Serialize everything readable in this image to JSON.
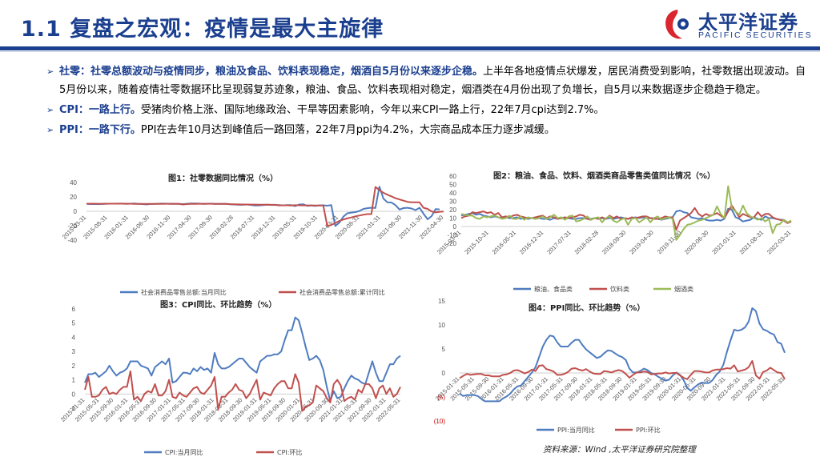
{
  "header": {
    "title": "1.1 复盘之宏观：疫情是最大主旋律",
    "logo_cn": "太平洋证券",
    "logo_en": "PACIFIC SECURITIES"
  },
  "bullets": [
    {
      "lead": "社零：社零总额波动与疫情同步，粮油及食品、饮料表现稳定，烟酒自5月份以来逐步企稳。",
      "body": "上半年各地疫情点状爆发，居民消费受到影响，社零数据出现波动。自5月份以来，随着疫情社零数据环比呈现弱复苏迹象，粮油、食品、饮料表现相对稳定，烟酒类在4月份出现了负增长，自5月以来数据逐步企稳趋于稳定。"
    },
    {
      "lead": "CPI：一路上行。",
      "body": "受猪肉价格上涨、国际地缘政治、干旱等因素影响，今年以来CPI一路上行，22年7月cpi达到2.7%。"
    },
    {
      "lead": "PPI：一路下行。",
      "body": "PPI在去年10月达到峰值后一路回落，22年7月ppi为4.2%，大宗商品成本压力逐步减缓。"
    }
  ],
  "source": "资料来源：Wind ,太平洋证券研究院整理",
  "colors": {
    "blue": "#4f7cc0",
    "red": "#c0504d",
    "green": "#9bbb59",
    "brand": "#1b3f8f"
  },
  "chart_data": [
    {
      "type": "line",
      "title": "图1：社零数据同比情况（%）",
      "ylim": [
        -40,
        40
      ],
      "yticks": [
        "40",
        "20",
        "0",
        "-20",
        "-40"
      ],
      "x_tick_labels": [
        "2015-03-31",
        "2015-08-31",
        "2016-01-31",
        "2016-06-30",
        "2016-11-30",
        "2017-04-30",
        "2017-09-30",
        "2018-02-28",
        "2018-07-31",
        "2018-12-31",
        "2019-05-31",
        "2019-10-31",
        "2020-03-31",
        "2020-08-31",
        "2021-01-31",
        "2021-06-30",
        "2021-11-30",
        "2022-04-30"
      ],
      "series": [
        {
          "name": "社会消费品零售总额:当月同比",
          "color": "#4f7cc0",
          "values": [
            10.2,
            10.0,
            10.1,
            10.0,
            10.1,
            10.4,
            10.5,
            10.6,
            10.7,
            10.5,
            10.3,
            10.5,
            10.8,
            10.2,
            10.0,
            9.6,
            10.1,
            10.2,
            10.6,
            10.7,
            10.5,
            10.2,
            10.4,
            10.3,
            10.0,
            10.4,
            10.8,
            10.9,
            10.7,
            10.2,
            10.4,
            10.7,
            10.3,
            10.2,
            10.4,
            10.1,
            9.7,
            9.4,
            9.0,
            9.0,
            9.4,
            8.8,
            8.1,
            8.2,
            8.6,
            9.2,
            8.8,
            8.8,
            8.7,
            8.2,
            8.7,
            8.6,
            7.2,
            9.5,
            9.8,
            7.6,
            8.0,
            7.5,
            8.2,
            8.3,
            7.8,
            8.5,
            -20.5,
            -15.8,
            -7.5,
            -2.8,
            -1.8,
            -1.1,
            0.5,
            3.3,
            4.3,
            5.0,
            4.6,
            34.2,
            17.7,
            12.4,
            12.1,
            8.5,
            2.5,
            4.4,
            4.9,
            3.9,
            1.7,
            4.9,
            -3.5,
            -11.1,
            -6.7,
            3.1,
            2.7
          ]
        },
        {
          "name": "社会消费品零售总额:累计同比",
          "color": "#c0504d",
          "values": [
            10.6,
            10.5,
            10.5,
            10.4,
            10.4,
            10.5,
            10.6,
            10.6,
            10.6,
            10.7,
            10.6,
            10.6,
            10.3,
            10.3,
            10.2,
            10.2,
            10.3,
            10.3,
            10.3,
            10.3,
            10.4,
            10.4,
            10.4,
            10.4,
            9.5,
            10.0,
            10.2,
            10.3,
            10.4,
            10.4,
            10.4,
            10.4,
            10.3,
            10.3,
            10.3,
            10.2,
            9.7,
            9.8,
            9.6,
            9.5,
            9.4,
            9.3,
            9.3,
            9.2,
            9.2,
            9.1,
            9.0,
            9.0,
            8.2,
            8.3,
            8.3,
            8.1,
            8.4,
            8.3,
            8.2,
            8.2,
            8.2,
            8.1,
            8.0,
            8.0,
            -20.5,
            -19.0,
            -16.2,
            -13.5,
            -11.4,
            -9.9,
            -8.6,
            -7.0,
            -5.9,
            -4.8,
            -3.9,
            -3.9,
            33.8,
            29.6,
            25.7,
            23.0,
            20.7,
            18.1,
            16.4,
            14.8,
            13.1,
            12.5,
            12.5,
            12.5,
            4.9,
            3.3,
            -0.2,
            -1.5,
            -0.7,
            -0.2
          ]
        }
      ]
    },
    {
      "type": "line",
      "title": "图2：粮油、食品、饮料、烟酒类商品零售类值同比情况（%）",
      "ylim": [
        -20,
        60
      ],
      "yticks": [
        "60",
        "50",
        "40",
        "30",
        "20",
        "10",
        "0",
        "-10",
        "-20"
      ],
      "x_tick_labels": [
        "2015-03-31",
        "2015-10-31",
        "2016-05-31",
        "2016-12-31",
        "2017-07-31",
        "2018-02-28",
        "2018-09-30",
        "2019-04-30",
        "2019-11-30",
        "2020-06-30",
        "2021-01-31",
        "2021-08-31",
        "2022-03-31"
      ],
      "series": [
        {
          "name": "粮油、食品类",
          "color": "#4f7cc0",
          "values": [
            13,
            14,
            15,
            16,
            14,
            15,
            13,
            12,
            11,
            12,
            11,
            10,
            11,
            10,
            10,
            11,
            9,
            10,
            9,
            10,
            9,
            10,
            9,
            9,
            8,
            10,
            9,
            10,
            9,
            10,
            9,
            9,
            10,
            10,
            9,
            9,
            10,
            9,
            10,
            9,
            10,
            9,
            10,
            11,
            10,
            9,
            10,
            11,
            10,
            11,
            10,
            10,
            10,
            9,
            8,
            9,
            10,
            11,
            18,
            19,
            17,
            16,
            11,
            10,
            9,
            10,
            8,
            7,
            7,
            8,
            7,
            9,
            21,
            20,
            11,
            9,
            6,
            7,
            8,
            11,
            9,
            8,
            12,
            10,
            10,
            9,
            8,
            8,
            5,
            6
          ]
        },
        {
          "name": "饮料类",
          "color": "#c0504d",
          "values": [
            10,
            12,
            13,
            17,
            16,
            17,
            18,
            16,
            17,
            14,
            16,
            11,
            12,
            11,
            13,
            14,
            12,
            11,
            10,
            10,
            11,
            12,
            13,
            10,
            12,
            11,
            9,
            10,
            11,
            10,
            11,
            12,
            14,
            13,
            9,
            8,
            10,
            9,
            11,
            9,
            13,
            10,
            12,
            9,
            10,
            9,
            11,
            10,
            11,
            12,
            12,
            10,
            9,
            9,
            10,
            12,
            11,
            11,
            -4,
            7,
            10,
            13,
            16,
            22,
            15,
            12,
            15,
            13,
            14,
            16,
            13,
            10,
            18,
            25,
            18,
            11,
            15,
            13,
            11,
            11,
            17,
            12,
            15,
            15,
            11,
            9,
            8,
            7,
            4,
            6
          ]
        },
        {
          "name": "烟酒类",
          "color": "#9bbb59",
          "values": [
            15,
            14,
            13,
            13,
            10,
            9,
            12,
            11,
            12,
            13,
            11,
            9,
            10,
            13,
            9,
            9,
            12,
            8,
            11,
            10,
            9,
            10,
            12,
            9,
            11,
            14,
            10,
            11,
            8,
            12,
            13,
            6,
            7,
            9,
            12,
            8,
            10,
            11,
            5,
            10,
            12,
            7,
            5,
            8,
            10,
            2,
            9,
            10,
            5,
            8,
            11,
            5,
            10,
            12,
            8,
            10,
            11,
            9,
            -16,
            -10,
            -3,
            2,
            3,
            5,
            7,
            8,
            10,
            12,
            14,
            24,
            15,
            10,
            48,
            22,
            18,
            14,
            25,
            16,
            12,
            10,
            8,
            10,
            6,
            9,
            -8,
            2,
            3,
            8,
            5,
            7
          ]
        }
      ]
    },
    {
      "type": "line",
      "title": "图3：CPI同比、环比趋势（%）",
      "ylim": [
        -1,
        6
      ],
      "yticks": [
        "6",
        "5",
        "4",
        "3",
        "2",
        "1",
        "0",
        "-1"
      ],
      "x_tick_labels": [
        "2015-01-31",
        "2015-05-31",
        "2015-09-30",
        "2016-01-31",
        "2016-05-31",
        "2016-09-30",
        "2017-01-31",
        "2017-05-31",
        "2017-09-30",
        "2018-01-31",
        "2018-05-31",
        "2018-09-30",
        "2019-01-31",
        "2019-05-31",
        "2019-09-30",
        "2020-01-31",
        "2020-05-31",
        "2020-09-30",
        "2021-01-31",
        "2021-05-31",
        "2021-09-30",
        "2022-01-31",
        "2022-05-31"
      ],
      "series": [
        {
          "name": "CPI:当月同比",
          "color": "#4f7cc0",
          "values": [
            0.8,
            1.4,
            1.4,
            1.5,
            1.2,
            1.4,
            1.6,
            2.0,
            1.6,
            1.3,
            1.5,
            1.6,
            1.8,
            2.3,
            2.3,
            2.3,
            2.0,
            1.9,
            1.8,
            1.3,
            1.9,
            2.1,
            2.3,
            2.1,
            2.5,
            0.8,
            0.9,
            1.2,
            1.5,
            1.5,
            1.4,
            1.8,
            1.6,
            1.9,
            1.7,
            1.8,
            1.5,
            2.9,
            2.1,
            1.8,
            1.8,
            1.9,
            2.1,
            2.3,
            2.5,
            2.5,
            2.2,
            1.9,
            1.7,
            1.5,
            2.3,
            2.5,
            2.7,
            2.7,
            2.8,
            2.8,
            3.0,
            3.8,
            4.5,
            4.5,
            5.4,
            5.2,
            4.3,
            3.3,
            2.4,
            2.5,
            2.7,
            2.4,
            1.7,
            0.5,
            -0.5,
            0.2,
            -0.3,
            -0.2,
            0.4,
            0.9,
            1.3,
            1.1,
            1.0,
            0.8,
            0.7,
            1.5,
            2.3,
            1.5,
            0.9,
            0.9,
            1.5,
            2.1,
            2.1,
            2.5,
            2.7
          ]
        },
        {
          "name": "CPI:环比",
          "color": "#c0504d",
          "values": [
            0.3,
            1.2,
            -0.2,
            -0.2,
            -0.1,
            0.3,
            0.5,
            0.0,
            0.1,
            0.0,
            0.3,
            0.5,
            0.5,
            1.6,
            -0.4,
            -0.2,
            -0.5,
            0.0,
            0.2,
            0.1,
            0.7,
            -0.1,
            -0.1,
            0.2,
            1.0,
            -0.2,
            -0.3,
            0.1,
            -0.1,
            -0.2,
            0.1,
            0.4,
            0.5,
            0.1,
            0.0,
            0.3,
            0.6,
            1.2,
            -1.1,
            -0.2,
            -0.2,
            0.1,
            0.3,
            0.7,
            0.3,
            0.2,
            -0.3,
            0.0,
            0.5,
            1.0,
            -0.4,
            0.1,
            0.0,
            -0.1,
            0.4,
            0.7,
            0.9,
            0.9,
            0.4,
            0.4,
            1.4,
            0.8,
            -1.2,
            -0.9,
            -0.8,
            -0.6,
            0.6,
            0.4,
            0.2,
            -0.3,
            -0.6,
            0.7,
            1.0,
            0.6,
            -0.5,
            -0.3,
            -0.2,
            -0.4,
            0.3,
            0.1,
            0.7,
            0.7,
            0.4,
            -0.3,
            0.4,
            0.6,
            0.0,
            0.4,
            -0.2,
            0.0,
            0.5
          ]
        }
      ]
    },
    {
      "type": "line",
      "title": "图4：PPI同比、环比趋势（%）",
      "ylim": [
        -10,
        15
      ],
      "yticks": [
        "15",
        "10",
        "5",
        "0",
        "(5)",
        "(10)"
      ],
      "x_tick_labels": [
        "2015-01-31",
        "2015-05-31",
        "2015-09-30",
        "2016-01-31",
        "2016-05-31",
        "2016-09-30",
        "2017-01-31",
        "2017-05-31",
        "2017-09-30",
        "2018-01-31",
        "2018-05-31",
        "2018-09-30",
        "2019-01-31",
        "2019-05-31",
        "2019-09-30",
        "2020-01-31",
        "2020-05-31",
        "2020-09-30",
        "2021-01-31",
        "2021-05-31",
        "2021-09-30",
        "2022-01-31",
        "2022-05-31"
      ],
      "series": [
        {
          "name": "PPI:当月同比",
          "color": "#4f7cc0",
          "values": [
            -4.3,
            -4.8,
            -4.6,
            -4.6,
            -4.6,
            -4.8,
            -5.4,
            -5.9,
            -5.9,
            -5.9,
            -5.9,
            -5.9,
            -5.3,
            -4.9,
            -4.3,
            -3.4,
            -2.8,
            -2.6,
            -1.7,
            -0.8,
            0.1,
            1.2,
            3.3,
            5.5,
            6.9,
            7.8,
            7.6,
            6.4,
            5.5,
            5.5,
            5.5,
            6.3,
            6.9,
            6.9,
            5.8,
            4.9,
            4.3,
            3.7,
            3.1,
            3.4,
            4.1,
            4.7,
            4.6,
            4.1,
            3.6,
            3.3,
            2.7,
            0.9,
            0.1,
            0.1,
            0.4,
            0.9,
            0.6,
            0.0,
            -0.3,
            -0.8,
            -1.2,
            -1.6,
            -1.4,
            -0.5,
            0.1,
            -0.4,
            -1.5,
            -3.1,
            -3.7,
            -3.0,
            -2.4,
            -2.0,
            -2.1,
            -2.1,
            -1.5,
            -0.4,
            0.3,
            1.7,
            4.4,
            6.8,
            9.0,
            8.8,
            9.0,
            9.5,
            10.7,
            13.5,
            12.9,
            10.3,
            9.1,
            8.8,
            8.3,
            8.0,
            6.4,
            6.1,
            4.2
          ]
        },
        {
          "name": "PPI:环比",
          "color": "#c0504d",
          "values": [
            -1.1,
            -0.6,
            -0.2,
            -0.4,
            -0.3,
            -0.2,
            -0.2,
            -0.5,
            -0.5,
            -0.7,
            -0.7,
            -0.7,
            -0.4,
            -0.3,
            0.0,
            0.5,
            0.6,
            0.3,
            -0.1,
            0.2,
            0.7,
            0.4,
            1.5,
            1.6,
            0.8,
            0.6,
            0.3,
            -0.4,
            -0.4,
            -0.2,
            0.2,
            0.9,
            1.0,
            0.7,
            0.5,
            0.8,
            0.3,
            -0.1,
            -0.2,
            -0.2,
            0.4,
            0.3,
            0.1,
            0.4,
            0.6,
            0.4,
            -0.2,
            -1.0,
            -0.4,
            0.1,
            0.1,
            0.3,
            0.2,
            -0.3,
            -0.2,
            -0.1,
            -0.1,
            0.1,
            -0.1,
            0.0,
            0.0,
            -0.5,
            -1.0,
            -1.3,
            -0.4,
            0.4,
            0.4,
            0.3,
            0.1,
            0.1,
            0.5,
            0.7,
            0.7,
            0.8,
            1.0,
            0.9,
            1.6,
            0.3,
            0.5,
            0.7,
            1.2,
            2.5,
            -0.5,
            -1.2,
            0.2,
            0.5,
            1.1,
            0.6,
            0.1,
            0.0,
            -1.3
          ]
        }
      ]
    }
  ]
}
